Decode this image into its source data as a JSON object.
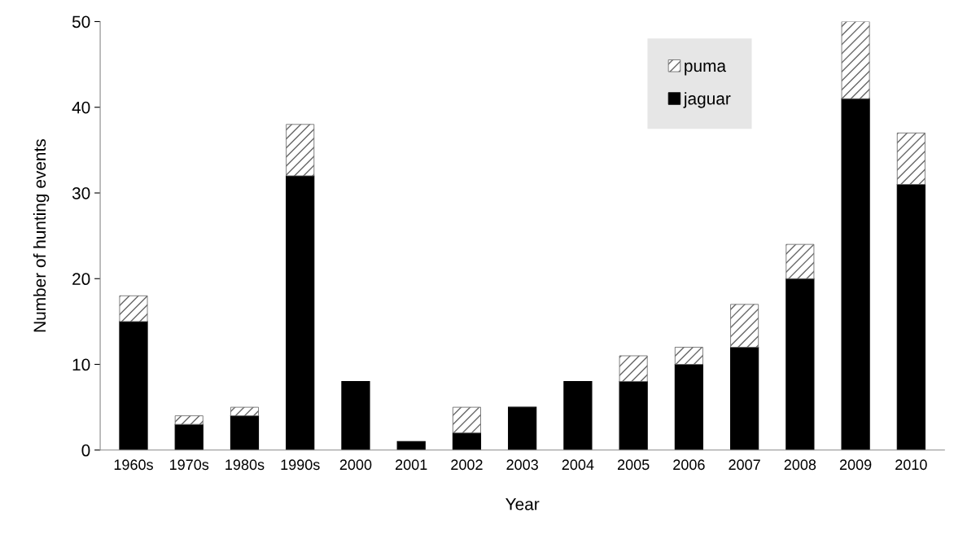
{
  "chart_data": {
    "type": "bar",
    "stacked": true,
    "xlabel": "Year",
    "ylabel": "Number of hunting events",
    "categories": [
      "1960s",
      "1970s",
      "1980s",
      "1990s",
      "2000",
      "2001",
      "2002",
      "2003",
      "2004",
      "2005",
      "2006",
      "2007",
      "2008",
      "2009",
      "2010"
    ],
    "series": [
      {
        "name": "jaguar",
        "color": "#000000",
        "values": [
          15,
          3,
          4,
          32,
          8,
          1,
          2,
          5,
          8,
          8,
          10,
          12,
          20,
          41,
          31
        ]
      },
      {
        "name": "puma",
        "color": "#666666",
        "values": [
          3,
          1,
          1,
          6,
          null,
          null,
          3,
          null,
          null,
          3,
          2,
          5,
          4,
          9,
          6
        ]
      }
    ],
    "ylim": [
      0,
      50
    ],
    "yticks": [
      0,
      10,
      20,
      30,
      40,
      50
    ],
    "grid": false,
    "legend": "top right"
  }
}
